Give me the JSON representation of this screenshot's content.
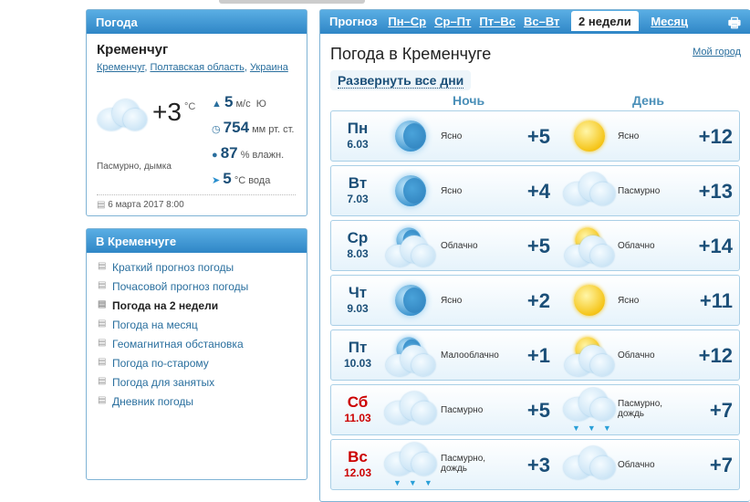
{
  "now": {
    "header": "Погода",
    "city": "Кременчуг",
    "breadcrumb": [
      "Кременчуг",
      "Полтавская область",
      "Украина"
    ],
    "temp": "+3",
    "temp_unit": "°C",
    "condition": "Пасмурно, дымка",
    "wind_value": "5",
    "wind_unit": "м/с",
    "wind_dir": "Ю",
    "pressure_value": "754",
    "pressure_unit": "мм рт. ст.",
    "humidity_value": "87",
    "humidity_unit": "% влажн.",
    "water_value": "5",
    "water_unit": "°C вода",
    "updated": "6 марта 2017 8:00"
  },
  "menu": {
    "header": "В Кременчуге",
    "items": [
      "Краткий прогноз погоды",
      "Почасовой прогноз погоды",
      "Погода на 2 недели",
      "Погода на месяц",
      "Геомагнитная обстановка",
      "Погода по-старому",
      "Погода для занятых",
      "Дневник погоды"
    ],
    "current": 2
  },
  "forecast": {
    "tabs_label": "Прогноз",
    "tabs": [
      "Пн–Ср",
      "Ср–Пт",
      "Пт–Вс",
      "Вс–Вт"
    ],
    "active_tab": "2 недели",
    "month_tab": "Месяц",
    "title": "Погода в Кременчуге",
    "my_city": "Мой город",
    "expand": "Развернуть все дни",
    "night_label": "Ночь",
    "day_label": "День",
    "days": [
      {
        "dow": "Пн",
        "date": "6.03",
        "weekend": false,
        "night_icon": "moon",
        "night_desc": "Ясно",
        "night_temp": "+5",
        "day_icon": "sun",
        "day_desc": "Ясно",
        "day_temp": "+12"
      },
      {
        "dow": "Вт",
        "date": "7.03",
        "weekend": false,
        "night_icon": "moon",
        "night_desc": "Ясно",
        "night_temp": "+4",
        "day_icon": "cloud",
        "day_desc": "Пасмурно",
        "day_temp": "+13"
      },
      {
        "dow": "Ср",
        "date": "8.03",
        "weekend": false,
        "night_icon": "moon-cloud",
        "night_desc": "Облачно",
        "night_temp": "+5",
        "day_icon": "sun-cloud",
        "day_desc": "Облачно",
        "day_temp": "+14"
      },
      {
        "dow": "Чт",
        "date": "9.03",
        "weekend": false,
        "night_icon": "moon",
        "night_desc": "Ясно",
        "night_temp": "+2",
        "day_icon": "sun",
        "day_desc": "Ясно",
        "day_temp": "+11"
      },
      {
        "dow": "Пт",
        "date": "10.03",
        "weekend": false,
        "night_icon": "moon-cloud",
        "night_desc": "Малооблачно",
        "night_temp": "+1",
        "day_icon": "sun-cloud",
        "day_desc": "Облачно",
        "day_temp": "+12"
      },
      {
        "dow": "Сб",
        "date": "11.03",
        "weekend": true,
        "night_icon": "cloud",
        "night_desc": "Пасмурно",
        "night_temp": "+5",
        "day_icon": "cloud-rain",
        "day_desc": "Пасмурно, дождь",
        "day_temp": "+7"
      },
      {
        "dow": "Вс",
        "date": "12.03",
        "weekend": true,
        "night_icon": "cloud-rain",
        "night_desc": "Пасмурно, дождь",
        "night_temp": "+3",
        "day_icon": "cloud",
        "day_desc": "Облачно",
        "day_temp": "+7"
      }
    ]
  }
}
